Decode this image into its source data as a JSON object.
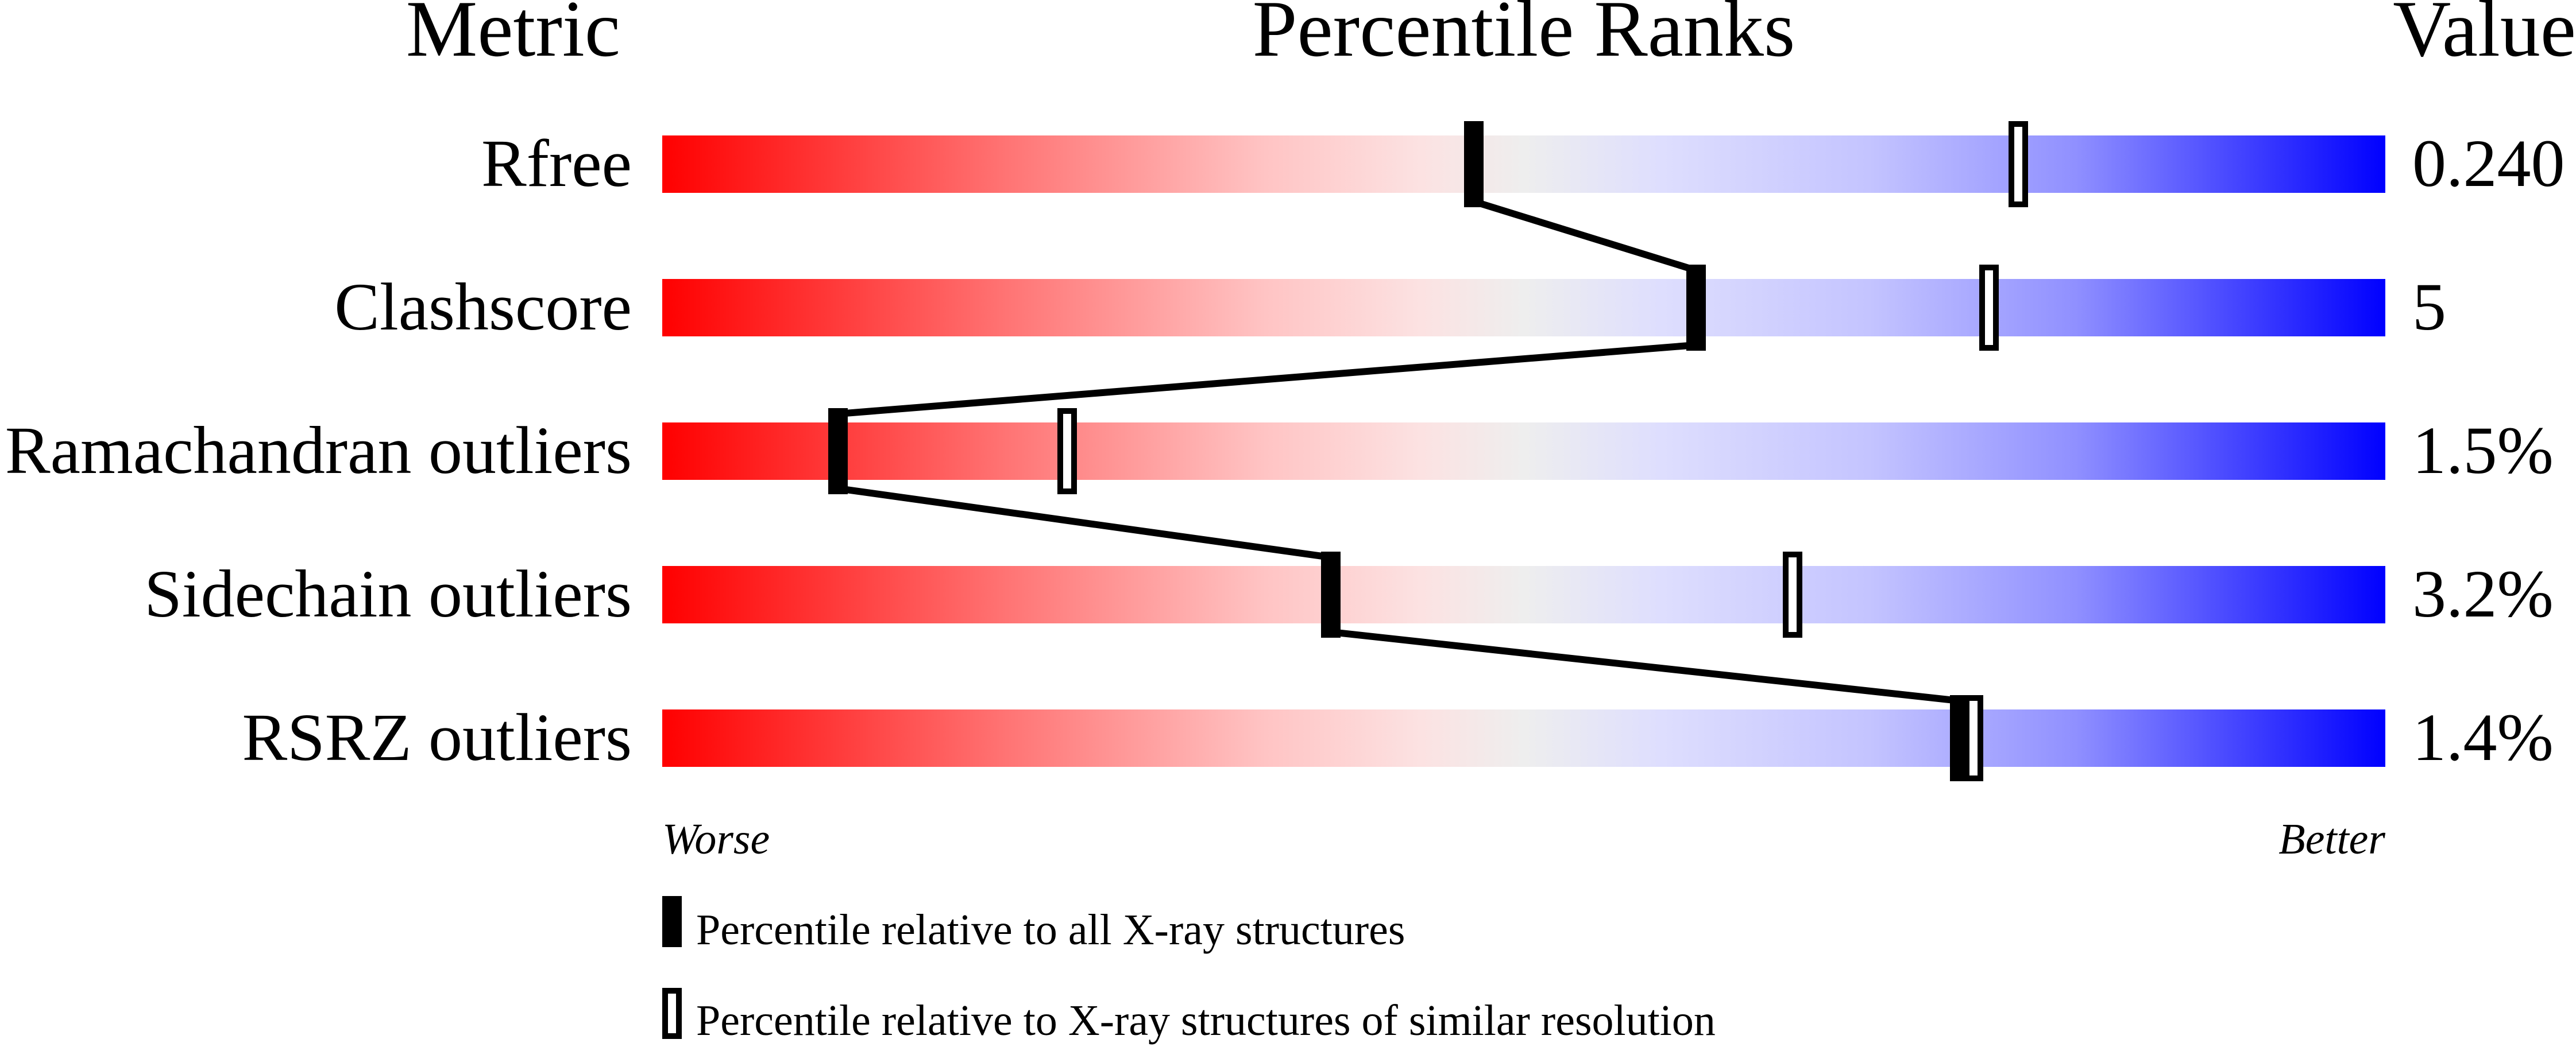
{
  "chart_data": {
    "type": "bar",
    "headers": {
      "metric": "Metric",
      "percentile": "Percentile Ranks",
      "value": "Value"
    },
    "xlim": [
      0,
      100
    ],
    "axis_labels": {
      "left": "Worse",
      "right": "Better"
    },
    "gradient_colors": [
      "#ff0000",
      "#eeeeee",
      "#0000ff"
    ],
    "rows": [
      {
        "metric": "Rfree",
        "value": "0.240",
        "percentile_all": 47.1,
        "percentile_similar": 78.7
      },
      {
        "metric": "Clashscore",
        "value": "5",
        "percentile_all": 60.0,
        "percentile_similar": 77.0
      },
      {
        "metric": "Ramachandran outliers",
        "value": "1.5%",
        "percentile_all": 10.2,
        "percentile_similar": 23.5
      },
      {
        "metric": "Sidechain outliers",
        "value": "3.2%",
        "percentile_all": 38.8,
        "percentile_similar": 65.6
      },
      {
        "metric": "RSRZ outliers",
        "value": "1.4%",
        "percentile_all": 75.3,
        "percentile_similar": 76.1
      }
    ],
    "legend": [
      {
        "marker": "filled",
        "label": "Percentile relative to all X-ray structures"
      },
      {
        "marker": "open",
        "label": "Percentile relative to X-ray structures of similar resolution"
      }
    ]
  }
}
